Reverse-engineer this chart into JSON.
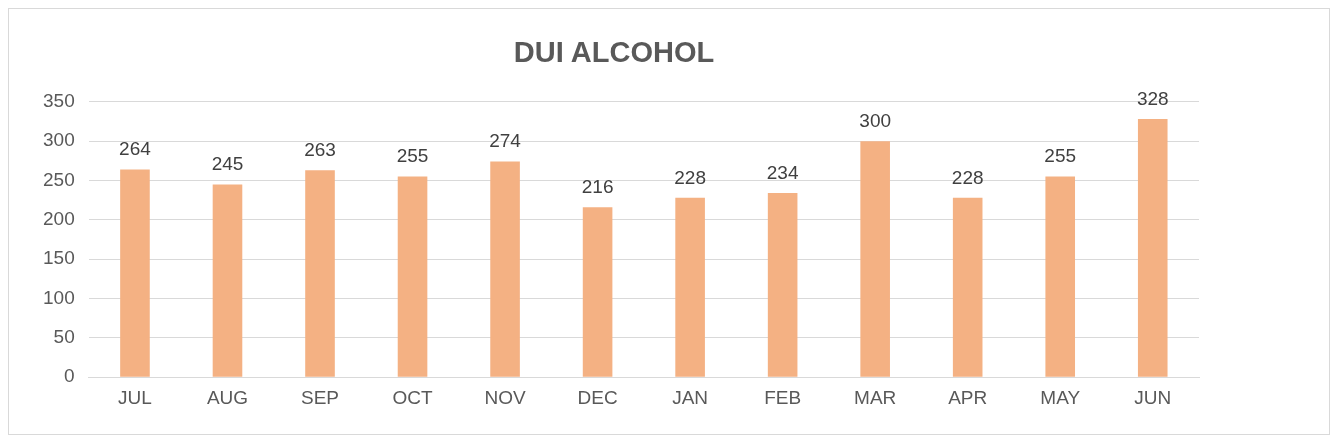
{
  "chart_data": {
    "type": "bar",
    "title": "DUI ALCOHOL",
    "categories": [
      "JUL",
      "AUG",
      "SEP",
      "OCT",
      "NOV",
      "DEC",
      "JAN",
      "FEB",
      "MAR",
      "APR",
      "MAY",
      "JUN"
    ],
    "values": [
      264,
      245,
      263,
      255,
      274,
      216,
      228,
      234,
      300,
      228,
      255,
      328
    ],
    "color": "#f4b183",
    "ylim": [
      0,
      350
    ],
    "yticks": [
      0,
      50,
      100,
      150,
      200,
      250,
      300,
      350
    ],
    "grid": "y",
    "data_labels": true,
    "legend": false
  }
}
